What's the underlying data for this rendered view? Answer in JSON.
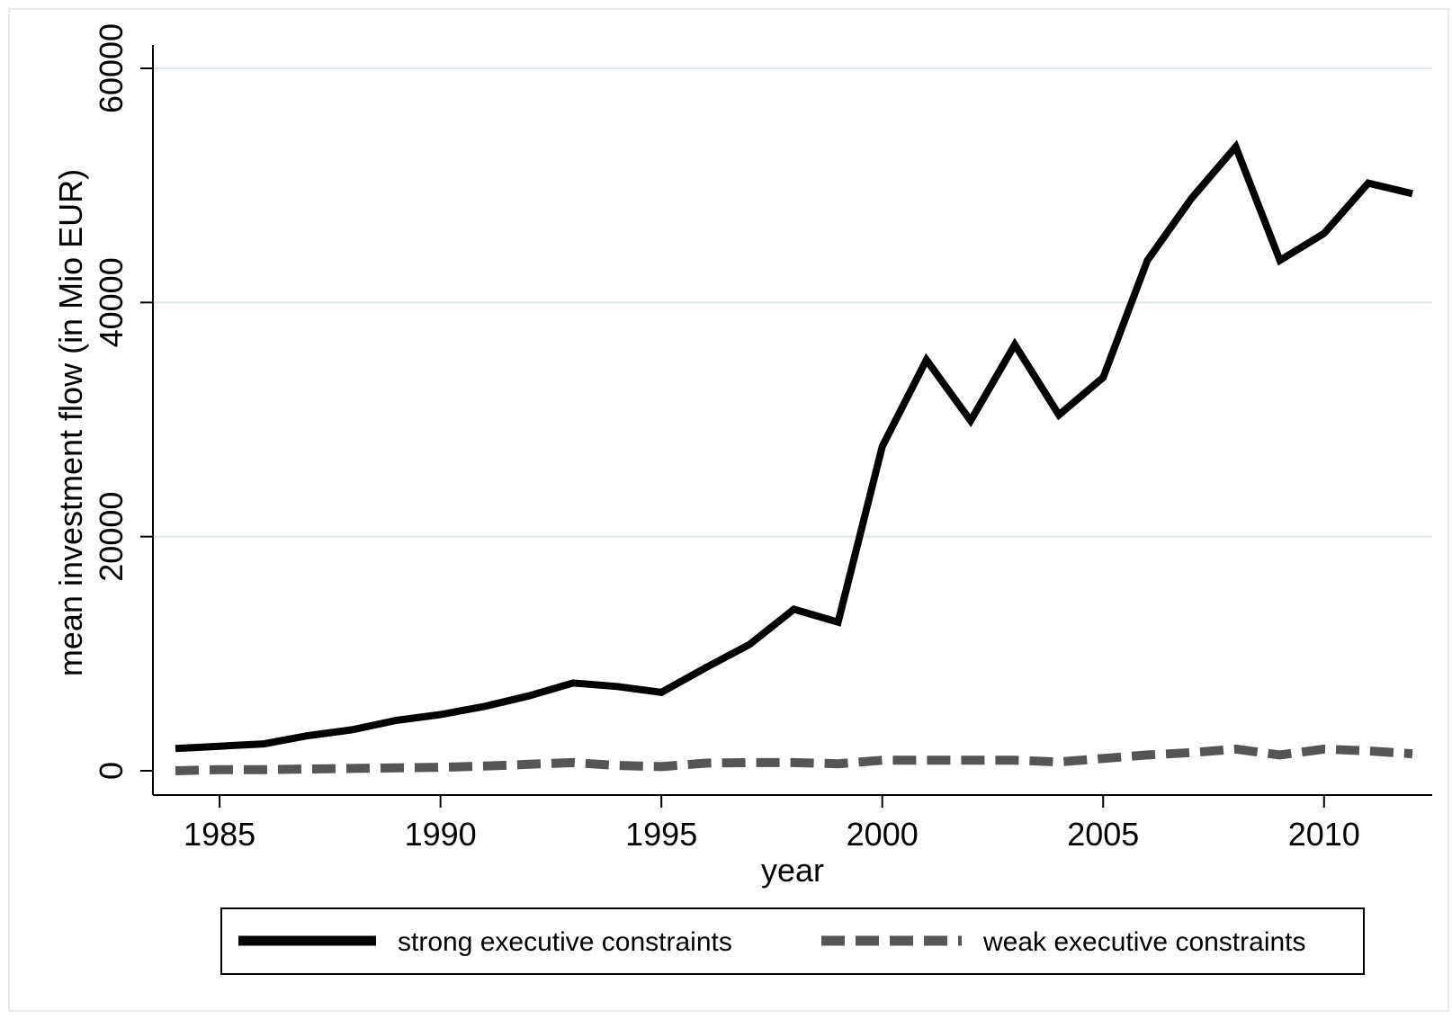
{
  "chart_data": {
    "type": "line",
    "title": "",
    "xlabel": "year",
    "ylabel": "mean investment flow (in Mio EUR)",
    "xlim": [
      1984,
      2012
    ],
    "ylim": [
      0,
      60000
    ],
    "x_ticks": [
      1985,
      1990,
      1995,
      2000,
      2005,
      2010
    ],
    "y_ticks": [
      0,
      20000,
      40000,
      60000
    ],
    "x_tick_labels": [
      "1985",
      "1990",
      "1995",
      "2000",
      "2005",
      "2010"
    ],
    "y_tick_labels": [
      "0",
      "20000",
      "40000",
      "60000"
    ],
    "grid": "horizontal",
    "legend_position": "bottom",
    "x": [
      1984,
      1985,
      1986,
      1987,
      1988,
      1989,
      1990,
      1991,
      1992,
      1993,
      1994,
      1995,
      1996,
      1997,
      1998,
      1999,
      2000,
      2001,
      2002,
      2003,
      2004,
      2005,
      2006,
      2007,
      2008,
      2009,
      2010,
      2011,
      2012
    ],
    "series": [
      {
        "name": "strong executive constraints",
        "color": "#000000",
        "style": "solid",
        "values": [
          1900,
          2100,
          2300,
          3000,
          3500,
          4300,
          4800,
          5500,
          6400,
          7500,
          7200,
          6700,
          8800,
          10800,
          13800,
          12700,
          27700,
          35100,
          29900,
          36400,
          30400,
          33600,
          43600,
          48900,
          53300,
          43600,
          45900,
          50200,
          49300
        ]
      },
      {
        "name": "weak executive constraints",
        "color": "#555555",
        "style": "dashed",
        "values": [
          0,
          100,
          100,
          150,
          200,
          250,
          300,
          400,
          550,
          700,
          450,
          350,
          650,
          700,
          700,
          600,
          900,
          900,
          900,
          900,
          750,
          1050,
          1350,
          1550,
          1850,
          1350,
          1850,
          1700,
          1450
        ]
      }
    ]
  }
}
